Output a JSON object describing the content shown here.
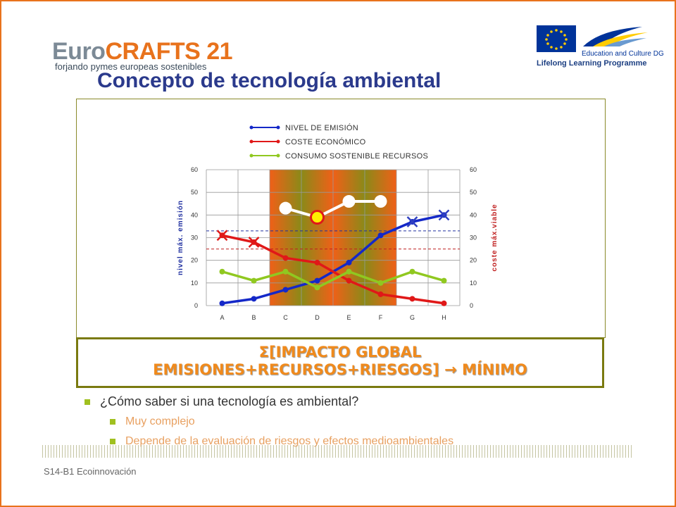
{
  "logo": {
    "part1": "Euro",
    "part2": "CRAFTS 21",
    "subtitle": "forjando pymes europeas sostenibles"
  },
  "eu_logo": {
    "line1": "Education and Culture DG",
    "line2": "Lifelong Learning Programme"
  },
  "slide_title": "Concepto de tecnología ambiental",
  "impact": {
    "line1": "Σ[IMPACTO GLOBAL",
    "line2": "EMISIONES+RECURSOS+RIESGOS] → MÍNIMO"
  },
  "bullets": {
    "main": "¿Cómo saber si una tecnología es ambiental?",
    "sub1": "Muy complejo",
    "sub2": "Depende de la evaluación de riesgos y efectos medioambientales"
  },
  "footer": "S14-B1 Ecoinnovación",
  "chart_data": {
    "type": "line",
    "categories": [
      "A",
      "B",
      "C",
      "D",
      "E",
      "F",
      "G",
      "H"
    ],
    "ylim": [
      0,
      60
    ],
    "yticks": [
      "0",
      "10",
      "20",
      "30",
      "40",
      "50",
      "60"
    ],
    "ylabel_left": "nivel máx. emisión",
    "ylabel_right": "coste máx.viable",
    "grid": true,
    "legend_position": "top",
    "series": [
      {
        "name": "NIVEL DE EMISIÓN",
        "color": "#1428c8",
        "values": [
          1,
          3,
          7,
          11,
          19,
          31,
          37,
          40
        ]
      },
      {
        "name": "COSTE ECONÓMICO",
        "color": "#e01818",
        "values": [
          31,
          28,
          21,
          19,
          11,
          5,
          3,
          1
        ]
      },
      {
        "name": "CONSUMO SOSTENIBLE RECURSOS",
        "color": "#90c820",
        "values": [
          15,
          11,
          15,
          8,
          15,
          10,
          15,
          11
        ]
      }
    ],
    "reference_lines": [
      {
        "axis": "left",
        "color": "#2030a0",
        "value": 33
      },
      {
        "axis": "right",
        "color": "#c02020",
        "value": 25
      }
    ],
    "cross_markers": [
      {
        "series": "NIVEL DE EMISIÓN",
        "categories": [
          "G",
          "H"
        ],
        "color": "#3040c0"
      },
      {
        "series": "COSTE ECONÓMICO",
        "categories": [
          "A",
          "B"
        ],
        "color": "#e01818"
      }
    ],
    "highlight_series": {
      "color": "#ffffff",
      "values_at": [
        "C",
        "D",
        "E",
        "F"
      ],
      "values": [
        43,
        39,
        46,
        46
      ],
      "marked_point": "D",
      "marked_color": "#ffee00"
    }
  }
}
